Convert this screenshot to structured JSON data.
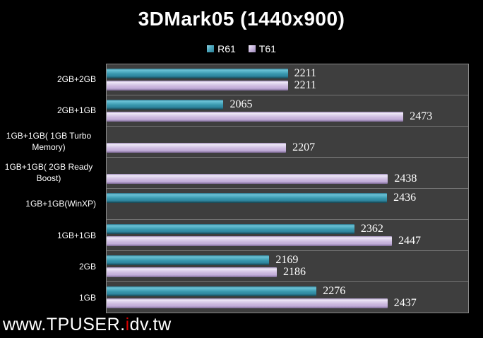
{
  "title": "3DMark05 (1440x900)",
  "legend": {
    "items": [
      {
        "label": "R61",
        "color": "#3795ab"
      },
      {
        "label": "T61",
        "color": "#cbb8de"
      }
    ],
    "position": "top-center"
  },
  "watermark": {
    "pre": "www.TPUSER.",
    "red": "i",
    "post": "dv.tw"
  },
  "colors": {
    "background": "#000000",
    "plot_background": "#3e3e3e",
    "band_separator": "#757575",
    "plot_border": "#8a8a8a",
    "text": "#ffffff",
    "r61_bar": "#3795ab",
    "t61_bar": "#cbb8de",
    "watermark_red": "#d80000"
  },
  "chart_data": {
    "type": "bar",
    "orientation": "horizontal",
    "title": "3DMark05 (1440x900)",
    "categories": [
      "2GB+2GB",
      "2GB+1GB",
      "1GB+1GB( 1GB Turbo Memory)",
      "1GB+1GB( 2GB Ready Boost)",
      "1GB+1GB(WinXP)",
      "1GB+1GB",
      "2GB",
      "1GB"
    ],
    "series": [
      {
        "name": "R61",
        "color": "#3795ab",
        "values": [
          2211,
          2065,
          null,
          null,
          2436,
          2362,
          2169,
          2276
        ]
      },
      {
        "name": "T61",
        "color": "#cbb8de",
        "values": [
          2211,
          2473,
          2207,
          2438,
          null,
          2447,
          2186,
          2437
        ]
      }
    ],
    "xlim": [
      1800,
      2620
    ],
    "xlabel": "",
    "ylabel": "",
    "value_labels": true,
    "grid": false,
    "axis_tick_labels_visible": false,
    "legend_position": "top"
  }
}
